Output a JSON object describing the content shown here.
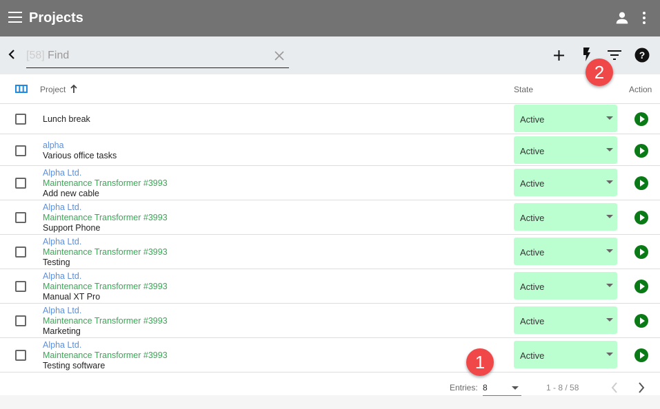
{
  "appbar": {
    "title": "Projects"
  },
  "search": {
    "count": "[58]",
    "placeholder": "Find"
  },
  "table": {
    "col_project": "Project",
    "col_state": "State",
    "col_action": "Action",
    "rows": [
      {
        "lines": [
          {
            "text": "Lunch break",
            "kind": "c3"
          }
        ],
        "state": "Active"
      },
      {
        "lines": [
          {
            "text": "alpha",
            "kind": "c1"
          },
          {
            "text": "Various office tasks",
            "kind": "c3"
          }
        ],
        "state": "Active"
      },
      {
        "lines": [
          {
            "text": "Alpha Ltd.",
            "kind": "c1"
          },
          {
            "text": "Maintenance Transformer #3993",
            "kind": "c2"
          },
          {
            "text": "Add new cable",
            "kind": "c3"
          }
        ],
        "state": "Active"
      },
      {
        "lines": [
          {
            "text": "Alpha Ltd.",
            "kind": "c1"
          },
          {
            "text": "Maintenance Transformer #3993",
            "kind": "c2"
          },
          {
            "text": "Support Phone",
            "kind": "c3"
          }
        ],
        "state": "Active"
      },
      {
        "lines": [
          {
            "text": "Alpha Ltd.",
            "kind": "c1"
          },
          {
            "text": "Maintenance Transformer #3993",
            "kind": "c2"
          },
          {
            "text": "Testing",
            "kind": "c3"
          }
        ],
        "state": "Active"
      },
      {
        "lines": [
          {
            "text": "Alpha Ltd.",
            "kind": "c1"
          },
          {
            "text": "Maintenance Transformer #3993",
            "kind": "c2"
          },
          {
            "text": "Manual XT Pro",
            "kind": "c3"
          }
        ],
        "state": "Active"
      },
      {
        "lines": [
          {
            "text": "Alpha Ltd.",
            "kind": "c1"
          },
          {
            "text": "Maintenance Transformer #3993",
            "kind": "c2"
          },
          {
            "text": "Marketing",
            "kind": "c3"
          }
        ],
        "state": "Active"
      },
      {
        "lines": [
          {
            "text": "Alpha Ltd.",
            "kind": "c1"
          },
          {
            "text": "Maintenance Transformer #3993",
            "kind": "c2"
          },
          {
            "text": "Testing software",
            "kind": "c3"
          }
        ],
        "state": "Active"
      }
    ]
  },
  "footer": {
    "entries_label": "Entries:",
    "entries_value": "8",
    "range": "1 - 8 / 58"
  },
  "badges": {
    "one": "1",
    "two": "2"
  },
  "colors": {
    "appbar": "#737373",
    "state_bg": "#bbffd1",
    "play": "#0a7a16",
    "badge": "#f04848",
    "link": "#5b8fde",
    "green_text": "#3aa655"
  }
}
